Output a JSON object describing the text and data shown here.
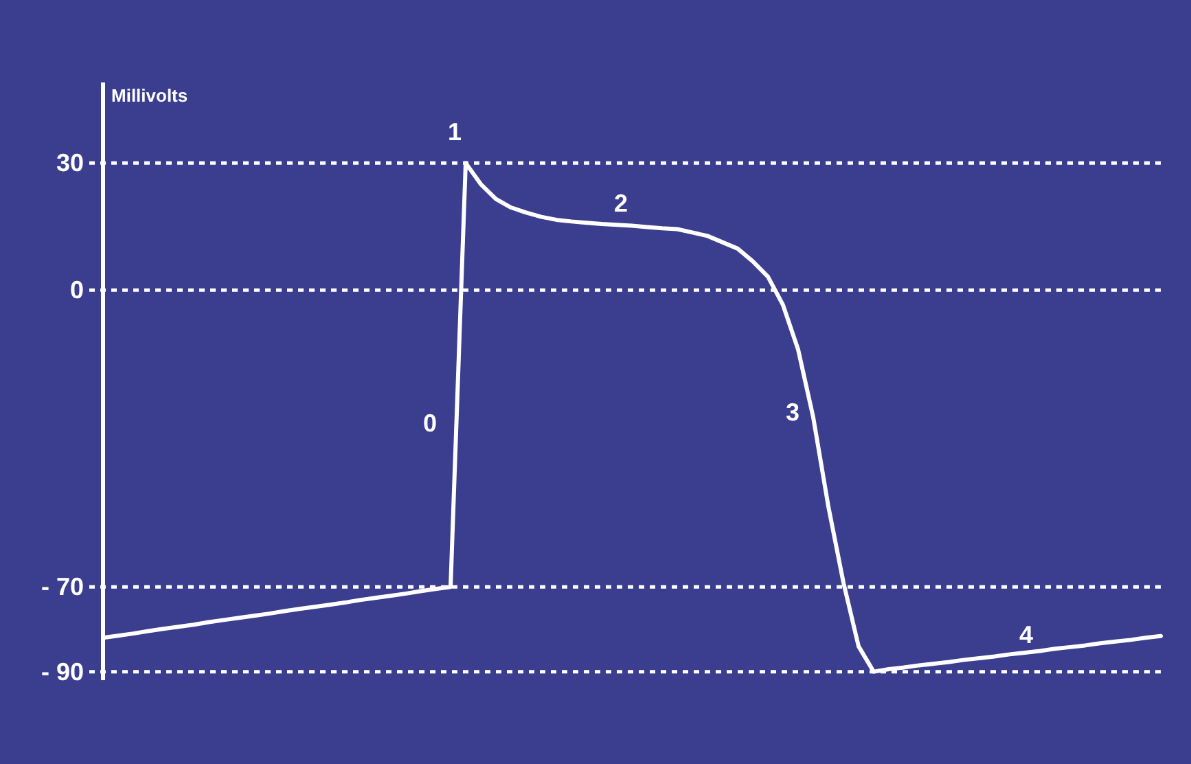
{
  "chart_data": {
    "type": "line",
    "ylabel": "Millivolts",
    "categories": [
      null,
      null,
      null,
      null,
      null,
      null,
      null,
      null,
      null,
      null,
      null,
      null,
      null,
      null,
      null,
      null,
      null,
      null,
      null,
      null,
      null,
      null,
      null,
      null,
      null,
      null,
      null,
      null,
      null,
      null,
      null,
      null,
      null,
      null,
      null,
      null,
      null,
      null,
      null,
      null,
      null,
      null,
      null,
      null,
      null,
      null,
      null,
      null,
      null,
      null,
      null,
      null,
      null,
      null,
      null,
      null,
      null,
      null,
      null,
      null,
      null,
      null,
      null,
      null,
      null,
      null,
      null,
      null,
      null,
      null,
      null
    ],
    "ylim": [
      -92,
      49
    ],
    "yticks": [
      30,
      0,
      {
        "value": -70,
        "label": "- 70"
      },
      {
        "value": -90,
        "label": "- 90"
      }
    ],
    "tick_labels": "y",
    "grid": "y",
    "marker": "none",
    "line_style": "solid",
    "series": [
      {
        "color": "#ffffff",
        "values": [
          -82,
          -81.5,
          -81,
          -80.4,
          -79.9,
          -79.4,
          -78.9,
          -78.3,
          -77.8,
          -77.3,
          -76.8,
          -76.3,
          -75.7,
          -75.2,
          -74.7,
          -74.2,
          -73.7,
          -73.1,
          -72.6,
          -72.1,
          -71.6,
          -71,
          -70.5,
          -70,
          30,
          25,
          21.5,
          19.5,
          18.3,
          17.3,
          16.6,
          16.2,
          15.9,
          15.6,
          15.4,
          15.2,
          14.9,
          14.6,
          14.4,
          13.6,
          12.8,
          11.3,
          9.8,
          6.8,
          3.2,
          -3.5,
          -14,
          -30,
          -51,
          -69,
          -84,
          -90,
          -89.4,
          -89,
          -88.5,
          -88.1,
          -87.7,
          -87.2,
          -86.8,
          -86.4,
          -85.9,
          -85.5,
          -85.1,
          -84.6,
          -84.2,
          -83.8,
          -83.3,
          -82.9,
          -82.5,
          -82,
          -81.6
        ]
      }
    ],
    "annotations": [
      "0",
      "1",
      "2",
      "3",
      "4"
    ]
  }
}
